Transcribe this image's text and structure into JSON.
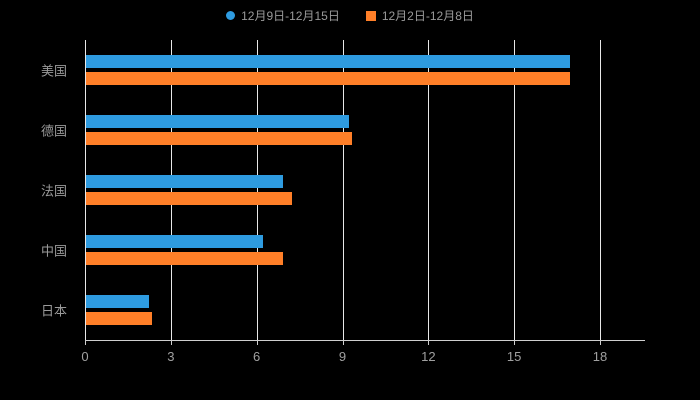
{
  "chart": {
    "background_color": "#000000",
    "text_color": "#9a9a9a",
    "grid_color": "#e8e8e8",
    "axis_color": "#cfcfcf"
  },
  "chart_data": {
    "type": "bar",
    "orientation": "horizontal",
    "title": "",
    "xlabel": "",
    "ylabel": "",
    "categories": [
      "美国",
      "德国",
      "法国",
      "中国",
      "日本"
    ],
    "series": [
      {
        "name": "12月9日-12月15日",
        "color": "#2E9BE0",
        "marker": "circle",
        "values": [
          16.9,
          9.2,
          6.9,
          6.2,
          2.2
        ]
      },
      {
        "name": "12月2日-12月8日",
        "color": "#FF7F28",
        "marker": "square",
        "values": [
          16.9,
          9.3,
          7.2,
          6.9,
          2.3
        ]
      }
    ],
    "xticks": [
      0,
      3,
      6,
      9,
      12,
      15,
      18
    ],
    "xlim": [
      0,
      19.5
    ],
    "grid": true,
    "legend_position": "top"
  }
}
